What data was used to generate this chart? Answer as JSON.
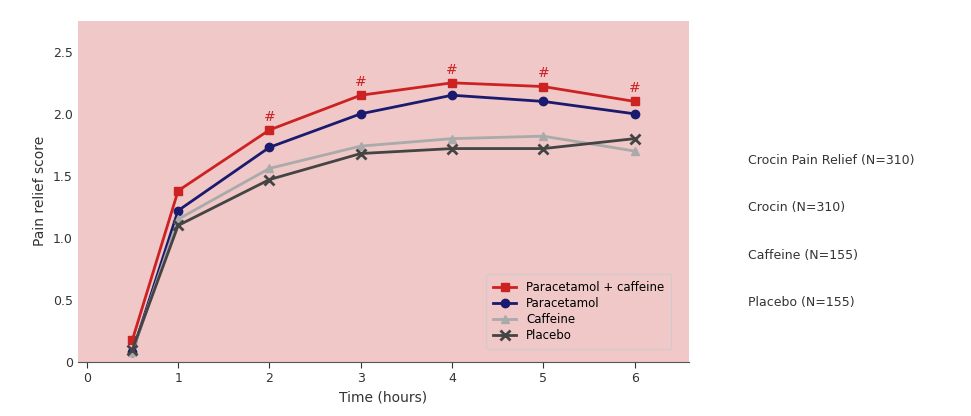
{
  "time": [
    0.5,
    1,
    2,
    3,
    4,
    5,
    6
  ],
  "paracetamol_caffeine": [
    0.18,
    1.38,
    1.87,
    2.15,
    2.25,
    2.22,
    2.1
  ],
  "paracetamol": [
    0.08,
    1.22,
    1.73,
    2.0,
    2.15,
    2.1,
    2.0
  ],
  "caffeine": [
    0.08,
    1.15,
    1.56,
    1.74,
    1.8,
    1.82,
    1.7
  ],
  "placebo": [
    0.1,
    1.1,
    1.47,
    1.68,
    1.72,
    1.72,
    1.8
  ],
  "hash_times": [
    2,
    3,
    4,
    5,
    6
  ],
  "hash_y": [
    1.87,
    2.15,
    2.25,
    2.22,
    2.1
  ],
  "color_paracetamol_caffeine": "#cc2222",
  "color_paracetamol": "#1a1a6e",
  "color_caffeine": "#aaaaaa",
  "color_placebo": "#444444",
  "background_color": "#f0c8c8",
  "ylabel": "Pain relief score",
  "xlabel": "Time (hours)",
  "ylim": [
    0,
    2.75
  ],
  "xlim": [
    -0.1,
    6.6
  ],
  "yticks": [
    0,
    0.5,
    1.0,
    1.5,
    2.0,
    2.5
  ],
  "ytick_labels": [
    "0",
    "0.5",
    "1.0",
    "1.5",
    "2.0",
    "2.5"
  ],
  "xticks": [
    0,
    1,
    2,
    3,
    4,
    5,
    6
  ],
  "legend_inside_labels": [
    "Paracetamol + caffeine",
    "Paracetamol",
    "Caffeine",
    "Placebo"
  ],
  "legend_outside_labels": [
    "Crocin Pain Relief (N=310)",
    "Crocin (N=310)",
    "Caffeine (N=155)",
    "Placebo (N=155)"
  ]
}
